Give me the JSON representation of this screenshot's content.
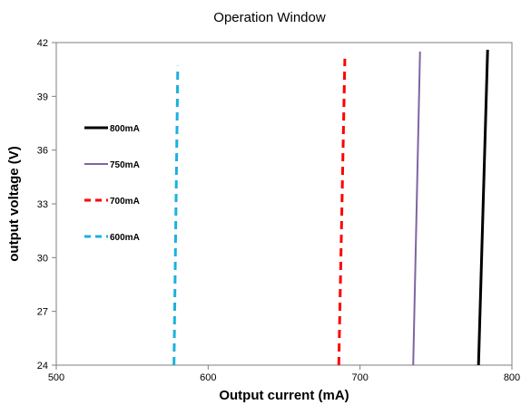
{
  "chart_data": {
    "type": "line",
    "title": "Operation Window",
    "xlabel": "Output current (mA)",
    "ylabel": "output voltage (V)",
    "xlim": [
      500,
      800
    ],
    "ylim": [
      24,
      42
    ],
    "x_ticks": [
      "500",
      "600",
      "700",
      "800"
    ],
    "y_ticks": [
      "24",
      "27",
      "30",
      "33",
      "36",
      "39",
      "42"
    ],
    "grid": false,
    "legend_position": "left",
    "series": [
      {
        "name": "800mA",
        "color": "#000000",
        "style": "solid",
        "points": [
          [
            778,
            24
          ],
          [
            784,
            41.6
          ]
        ]
      },
      {
        "name": "750mA",
        "color": "#8064a2",
        "style": "solid",
        "points": [
          [
            735,
            24
          ],
          [
            739.5,
            41.5
          ]
        ]
      },
      {
        "name": "700mA",
        "color": "#ff0000",
        "style": "dashed",
        "points": [
          [
            686,
            24
          ],
          [
            690,
            41.1
          ]
        ]
      },
      {
        "name": "600mA",
        "color": "#1cb0e0",
        "style": "dashed",
        "points": [
          [
            577.5,
            24
          ],
          [
            580,
            40.7
          ]
        ]
      }
    ]
  }
}
